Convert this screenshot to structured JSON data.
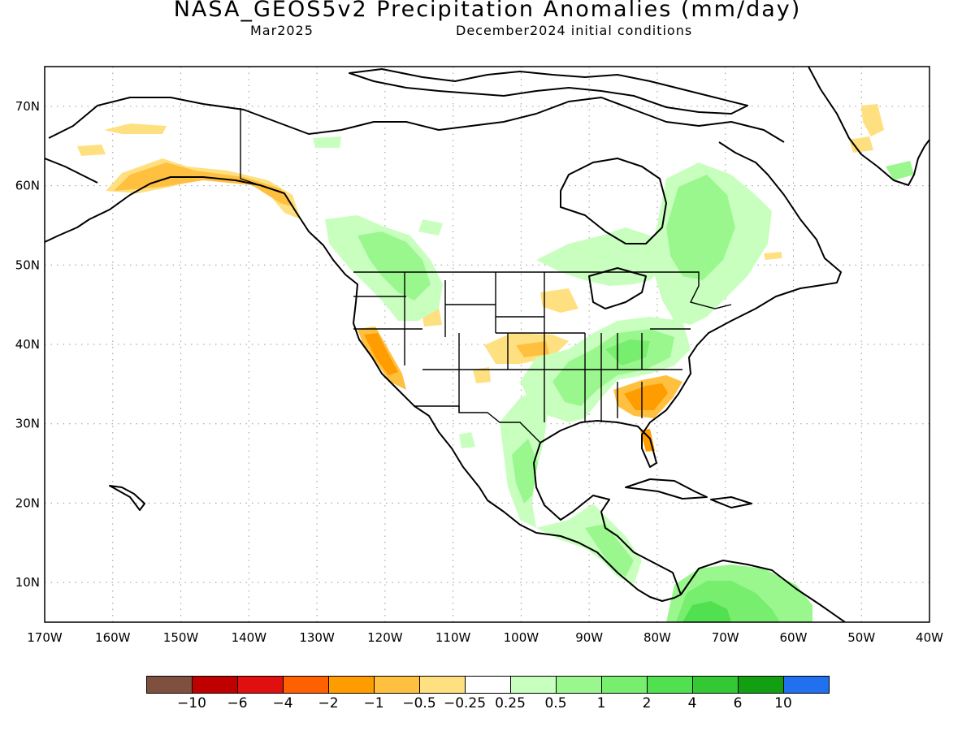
{
  "header": {
    "title": "NASA_GEOS5v2 Precipitation Anomalies (mm/day)",
    "valid_month": "Mar2025",
    "init_conditions": "December2024 initial conditions"
  },
  "map": {
    "lon_range": [
      -170,
      -40
    ],
    "lat_range": [
      5,
      75
    ],
    "lon_tick_labels": [
      "170W",
      "160W",
      "150W",
      "140W",
      "130W",
      "120W",
      "110W",
      "100W",
      "90W",
      "80W",
      "70W",
      "60W",
      "50W",
      "40W"
    ],
    "lat_tick_labels": [
      "70N",
      "60N",
      "50N",
      "40N",
      "30N",
      "20N",
      "10N"
    ],
    "gridlines": "dotted"
  },
  "colorbar": {
    "colors": [
      "#7f5040",
      "#c00000",
      "#e01010",
      "#ff6000",
      "#ff9c00",
      "#ffc040",
      "#ffe080",
      "#ffffff",
      "#c8ffbe",
      "#9af78e",
      "#78ee6e",
      "#50e050",
      "#35c835",
      "#12a012",
      "#2070ef"
    ],
    "labels": [
      "−10",
      "−6",
      "−4",
      "−2",
      "−1",
      "−0.5",
      "−0.25",
      "0.25",
      "0.5",
      "1",
      "2",
      "4",
      "6",
      "10"
    ]
  },
  "anomaly_regions": [
    {
      "region": "Southern Alaska coast",
      "category": "-1"
    },
    {
      "region": "Northern California / Sierra Nevada",
      "category": "-2"
    },
    {
      "region": "Georgia / Carolinas",
      "category": "-1"
    },
    {
      "region": "Florida peninsula",
      "category": "-1"
    },
    {
      "region": "Central Plains (Kansas)",
      "category": "-0.5"
    },
    {
      "region": "Upper Midwest (Minnesota)",
      "category": "-0.5"
    },
    {
      "region": "Ohio and Tennessee Valleys",
      "category": "1"
    },
    {
      "region": "Eastern Canada / Quebec",
      "category": "1"
    },
    {
      "region": "Pacific Northwest / British Columbia",
      "category": "1"
    },
    {
      "region": "Eastern Mexico",
      "category": "1"
    },
    {
      "region": "Central America",
      "category": "1"
    },
    {
      "region": "Northern South America",
      "category": "2"
    },
    {
      "region": "Southern Greenland",
      "category": "-0.5"
    }
  ]
}
